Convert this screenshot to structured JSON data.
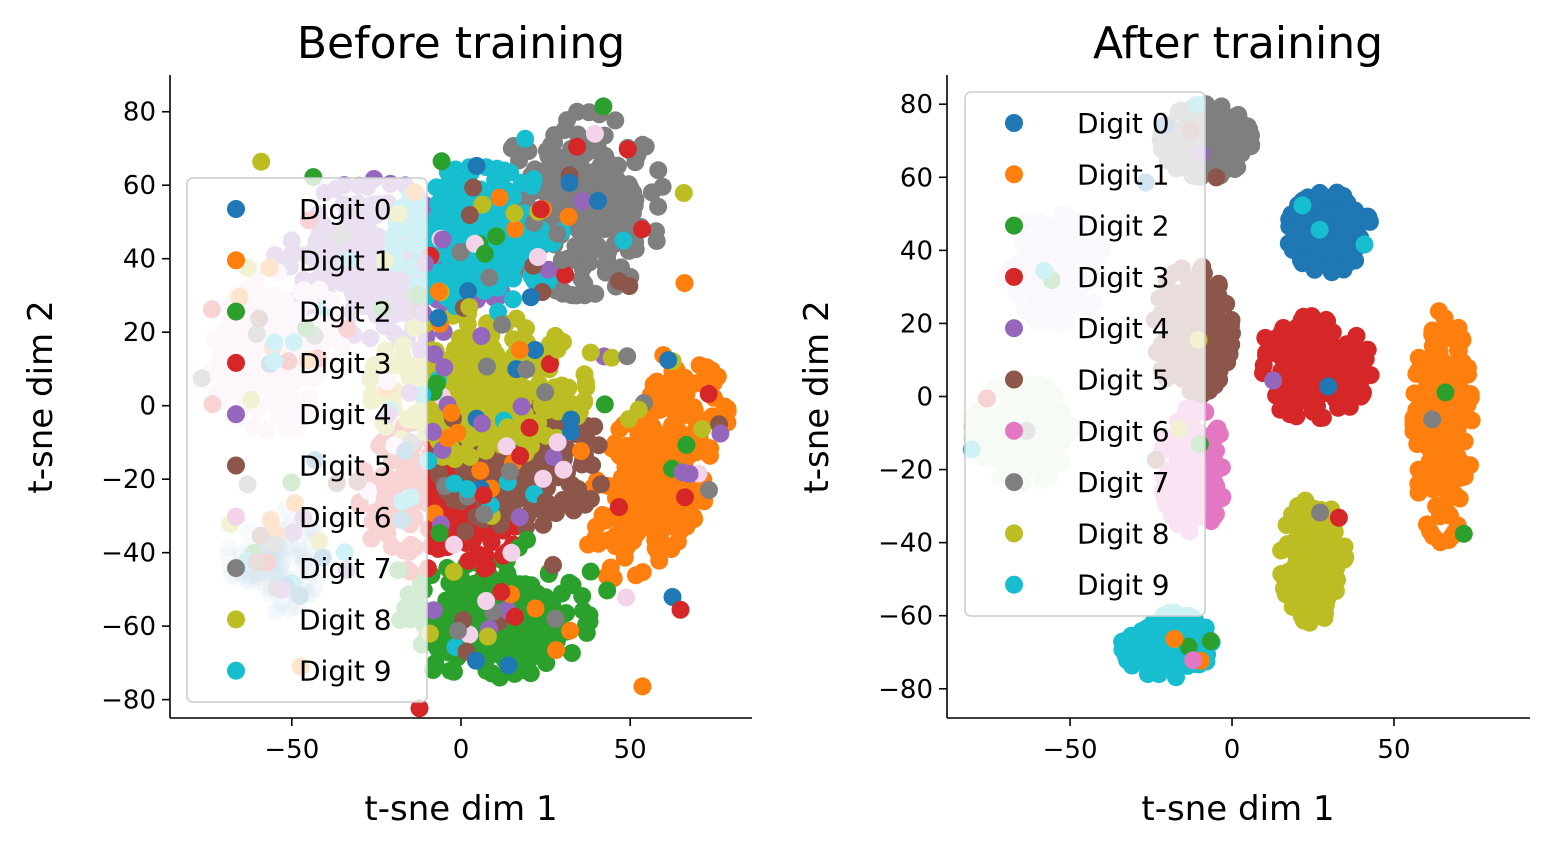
{
  "chart_data": [
    {
      "type": "scatter",
      "title": "Before training",
      "xlabel": "t-sne dim 1",
      "ylabel": "t-sne dim 2",
      "xlim": [
        -86,
        86
      ],
      "ylim": [
        -85,
        90
      ],
      "xticks": [
        -50,
        0,
        50
      ],
      "yticks": [
        -80,
        -60,
        -40,
        -20,
        0,
        20,
        40,
        60,
        80
      ],
      "legend_position": "center-left",
      "clusters": [
        {
          "label": "Digit 0",
          "color": "#1f77b4",
          "cx": -55,
          "cy": -42,
          "rx": 14,
          "ry": 14,
          "n": 120,
          "alpha": 0.18
        },
        {
          "label": "Digit 1",
          "color": "#ff7f0e",
          "cx": 58,
          "cy": -18,
          "rx": 16,
          "ry": 32,
          "n": 260,
          "alpha": 1,
          "rot": -0.5
        },
        {
          "label": "Digit 2",
          "color": "#2ca02c",
          "cx": 10,
          "cy": -58,
          "rx": 28,
          "ry": 16,
          "n": 300,
          "alpha": 1
        },
        {
          "label": "Digit 3",
          "color": "#d62728",
          "cx": -5,
          "cy": -25,
          "rx": 25,
          "ry": 22,
          "n": 220,
          "alpha": 1
        },
        {
          "label": "Digit 4",
          "color": "#9467bd",
          "cx": -20,
          "cy": 40,
          "rx": 35,
          "ry": 22,
          "n": 280,
          "alpha": 1
        },
        {
          "label": "Digit 5",
          "color": "#8c564b",
          "cx": 18,
          "cy": -15,
          "rx": 25,
          "ry": 18,
          "n": 240,
          "alpha": 1
        },
        {
          "label": "Digit 6",
          "color": "#f4d3ea",
          "cx": -55,
          "cy": 15,
          "rx": 20,
          "ry": 22,
          "n": 200,
          "alpha": 1
        },
        {
          "label": "Digit 7",
          "color": "#7f7f7f",
          "cx": 35,
          "cy": 55,
          "rx": 25,
          "ry": 25,
          "n": 280,
          "alpha": 1
        },
        {
          "label": "Digit 8",
          "color": "#bcbd22",
          "cx": 5,
          "cy": 5,
          "rx": 32,
          "ry": 20,
          "n": 300,
          "alpha": 1
        },
        {
          "label": "Digit 9",
          "color": "#17becf",
          "cx": 5,
          "cy": 45,
          "rx": 25,
          "ry": 20,
          "n": 260,
          "alpha": 1
        }
      ],
      "legend": [
        "Digit 0",
        "Digit 1",
        "Digit 2",
        "Digit 3",
        "Digit 4",
        "Digit 5",
        "Digit 6",
        "Digit 7",
        "Digit 8",
        "Digit 9"
      ]
    },
    {
      "type": "scatter",
      "title": "After training",
      "xlabel": "t-sne dim 1",
      "ylabel": "t-sne dim 2",
      "xlim": [
        -88,
        92
      ],
      "ylim": [
        -88,
        88
      ],
      "xticks": [
        -50,
        0,
        50
      ],
      "yticks": [
        -80,
        -60,
        -40,
        -20,
        0,
        20,
        40,
        60,
        80
      ],
      "legend_position": "upper-left",
      "clusters": [
        {
          "label": "Digit 0",
          "color": "#1f77b4",
          "cx": 30,
          "cy": 45,
          "rx": 13,
          "ry": 11,
          "n": 220,
          "alpha": 1
        },
        {
          "label": "Digit 1",
          "color": "#ff7f0e",
          "cx": 65,
          "cy": -8,
          "rx": 9,
          "ry": 32,
          "n": 240,
          "alpha": 1
        },
        {
          "label": "Digit 2",
          "color": "#d1e8d1",
          "cx": -65,
          "cy": -10,
          "rx": 16,
          "ry": 14,
          "n": 220,
          "alpha": 1
        },
        {
          "label": "Digit 3",
          "color": "#d62728",
          "cx": 25,
          "cy": 8,
          "rx": 18,
          "ry": 14,
          "n": 240,
          "alpha": 1
        },
        {
          "label": "Digit 4",
          "color": "#e5dcef",
          "cx": -55,
          "cy": 35,
          "rx": 16,
          "ry": 15,
          "n": 220,
          "alpha": 1
        },
        {
          "label": "Digit 5",
          "color": "#8c564b",
          "cx": -12,
          "cy": 18,
          "rx": 12,
          "ry": 18,
          "n": 220,
          "alpha": 1
        },
        {
          "label": "Digit 6",
          "color": "#e377c2",
          "cx": -12,
          "cy": -20,
          "rx": 10,
          "ry": 17,
          "n": 200,
          "alpha": 1
        },
        {
          "label": "Digit 7",
          "color": "#7f7f7f",
          "cx": -8,
          "cy": 70,
          "rx": 14,
          "ry": 10,
          "n": 200,
          "alpha": 1
        },
        {
          "label": "Digit 8",
          "color": "#bcbd22",
          "cx": 25,
          "cy": -45,
          "rx": 10,
          "ry": 17,
          "n": 220,
          "alpha": 1
        },
        {
          "label": "Digit 9",
          "color": "#17becf",
          "cx": -20,
          "cy": -68,
          "rx": 14,
          "ry": 9,
          "n": 200,
          "alpha": 1
        }
      ],
      "legend": [
        "Digit 0",
        "Digit 1",
        "Digit 2",
        "Digit 3",
        "Digit 4",
        "Digit 5",
        "Digit 6",
        "Digit 7",
        "Digit 8",
        "Digit 9"
      ],
      "legend_colors": [
        "#1f77b4",
        "#ff7f0e",
        "#2ca02c",
        "#d62728",
        "#9467bd",
        "#8c564b",
        "#e377c2",
        "#7f7f7f",
        "#bcbd22",
        "#17becf"
      ]
    }
  ]
}
